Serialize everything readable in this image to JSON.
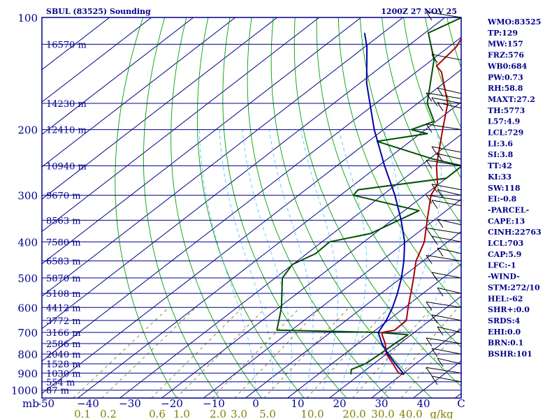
{
  "header": {
    "title": "SBUL (83525) Sounding",
    "datetime": "1200Z 27 NOV 25"
  },
  "indices": [
    "WMO:83525",
    "TP:129",
    "MW:157",
    "FRZ:576",
    "WB0:684",
    "PW:0.73",
    "RH:58.8",
    "MAXT:27.2",
    "TH:5773",
    "L57:4.9",
    "LCL:729",
    "LI:3.6",
    "SI:3.8",
    "TT:42",
    "KI:33",
    "SW:118",
    "EI:-0.8",
    "-PARCEL-",
    "CAPE:13",
    "CINH:22763",
    "LCL:703",
    "CAP:5.9",
    "LFC:-1",
    "-WIND-",
    "STM:272/10",
    "HEL:-62",
    "SHR+:0.0",
    "SRDS:4",
    "EHI:0.0",
    "BRN:0.1",
    "BSHR:101"
  ],
  "colors": {
    "isobar": "#00008b",
    "isotherm": "#00008b",
    "dry_adiabat": "#00a000",
    "moist_adiabat": "#66ccff",
    "mixing_ratio": "#808000",
    "temperature": "#b00000",
    "dewpoint": "#005000",
    "parcel": "#0000aa",
    "label": "#00008b",
    "mixing_label": "#808000"
  },
  "chart_data": {
    "type": "skew-t",
    "title": "SBUL (83525) Sounding",
    "pressure_ticks": [
      100,
      200,
      300,
      400,
      500,
      600,
      700,
      800,
      900,
      1000
    ],
    "pressure_tick_labels": [
      "100",
      "200",
      "300",
      "400",
      "500",
      "600",
      "700",
      "800",
      "900",
      "1000"
    ],
    "temperature_ticks": [
      -50,
      -40,
      -30,
      -20,
      -10,
      0,
      10,
      20,
      30,
      40
    ],
    "temperature_tick_labels": [
      "-50",
      "−40",
      "−30",
      "−20",
      "−10",
      "0",
      "10",
      "20",
      "30",
      "40"
    ],
    "xlabel_left": "mb",
    "xlabel_right": "C",
    "mixing_ratio_labels": [
      "0.1",
      "0.2",
      "0.6",
      "1.0",
      "2.0",
      "3.0",
      "5.0",
      "10.0",
      "20.0",
      "30.0",
      "40.0"
    ],
    "mixing_ratio_unit": "g/kg",
    "height_levels": [
      {
        "p": 118,
        "label": "16570 m"
      },
      {
        "p": 170,
        "label": "14230 m"
      },
      {
        "p": 200,
        "label": "12410 m"
      },
      {
        "p": 250,
        "label": "10940 m"
      },
      {
        "p": 300,
        "label": "9670 m"
      },
      {
        "p": 350,
        "label": "8563 m"
      },
      {
        "p": 400,
        "label": "7580 m"
      },
      {
        "p": 450,
        "label": "6583 m"
      },
      {
        "p": 500,
        "label": "5870 m"
      },
      {
        "p": 550,
        "label": "5108 m"
      },
      {
        "p": 600,
        "label": "4412 m"
      },
      {
        "p": 650,
        "label": "3772 m"
      },
      {
        "p": 700,
        "label": "3166 m"
      },
      {
        "p": 750,
        "label": "2586 m"
      },
      {
        "p": 800,
        "label": "2040 m"
      },
      {
        "p": 850,
        "label": "1528 m"
      },
      {
        "p": 900,
        "label": "1030 m"
      },
      {
        "p": 950,
        "label": "554 m"
      },
      {
        "p": 1000,
        "label": "87 m"
      }
    ],
    "temperature_profile": [
      {
        "p": 907,
        "t": 30.5
      },
      {
        "p": 900,
        "t": 28.8
      },
      {
        "p": 850,
        "t": 24.6
      },
      {
        "p": 800,
        "t": 20.0
      },
      {
        "p": 750,
        "t": 16.5
      },
      {
        "p": 710,
        "t": 13.0
      },
      {
        "p": 700,
        "t": 12.4
      },
      {
        "p": 690,
        "t": 14.6
      },
      {
        "p": 650,
        "t": 14.4
      },
      {
        "p": 600,
        "t": 10.8
      },
      {
        "p": 550,
        "t": 7.1
      },
      {
        "p": 500,
        "t": 3.0
      },
      {
        "p": 450,
        "t": -1.7
      },
      {
        "p": 400,
        "t": -5.6
      },
      {
        "p": 350,
        "t": -11.6
      },
      {
        "p": 300,
        "t": -18.4
      },
      {
        "p": 280,
        "t": -20.3
      },
      {
        "p": 250,
        "t": -26.2
      },
      {
        "p": 200,
        "t": -35.9
      },
      {
        "p": 170,
        "t": -42.8
      },
      {
        "p": 140,
        "t": -54.0
      },
      {
        "p": 135,
        "t": -57.0
      },
      {
        "p": 120,
        "t": -58.2
      },
      {
        "p": 110,
        "t": -60.5
      },
      {
        "p": 100,
        "t": -63.0
      }
    ],
    "dewpoint_profile": [
      {
        "p": 907,
        "t": 17.8
      },
      {
        "p": 880,
        "t": 16.4
      },
      {
        "p": 850,
        "t": 18.0
      },
      {
        "p": 800,
        "t": 18.5
      },
      {
        "p": 750,
        "t": 18.8
      },
      {
        "p": 710,
        "t": 19.2
      },
      {
        "p": 700,
        "t": 11.3
      },
      {
        "p": 690,
        "t": -13.5
      },
      {
        "p": 600,
        "t": -19.4
      },
      {
        "p": 500,
        "t": -28.3
      },
      {
        "p": 460,
        "t": -30.1
      },
      {
        "p": 430,
        "t": -27.9
      },
      {
        "p": 400,
        "t": -28.2
      },
      {
        "p": 380,
        "t": -21.0
      },
      {
        "p": 330,
        "t": -16.5
      },
      {
        "p": 300,
        "t": -36.9
      },
      {
        "p": 290,
        "t": -37.5
      },
      {
        "p": 270,
        "t": -20.0
      },
      {
        "p": 250,
        "t": -20.1
      },
      {
        "p": 240,
        "t": -29.0
      },
      {
        "p": 215,
        "t": -47.9
      },
      {
        "p": 205,
        "t": -38.3
      },
      {
        "p": 200,
        "t": -43.4
      },
      {
        "p": 190,
        "t": -40.5
      },
      {
        "p": 170,
        "t": -47.7
      },
      {
        "p": 130,
        "t": -59.5
      },
      {
        "p": 110,
        "t": -69.2
      },
      {
        "p": 100,
        "t": -66.0
      }
    ],
    "parcel_profile": [
      {
        "p": 907,
        "t": 30.5
      },
      {
        "p": 850,
        "t": 25.2
      },
      {
        "p": 800,
        "t": 20.4
      },
      {
        "p": 750,
        "t": 15.7
      },
      {
        "p": 700,
        "t": 11.4
      },
      {
        "p": 650,
        "t": 9.6
      },
      {
        "p": 600,
        "t": 7.1
      },
      {
        "p": 550,
        "t": 3.9
      },
      {
        "p": 500,
        "t": 0.1
      },
      {
        "p": 450,
        "t": -4.6
      },
      {
        "p": 400,
        "t": -10.3
      },
      {
        "p": 350,
        "t": -17.8
      },
      {
        "p": 300,
        "t": -27.0
      },
      {
        "p": 250,
        "t": -38.6
      },
      {
        "p": 200,
        "t": -52.2
      },
      {
        "p": 150,
        "t": -68.4
      },
      {
        "p": 120,
        "t": -79.5
      },
      {
        "p": 110,
        "t": -84.4
      }
    ],
    "legend": "none",
    "grid": true
  }
}
